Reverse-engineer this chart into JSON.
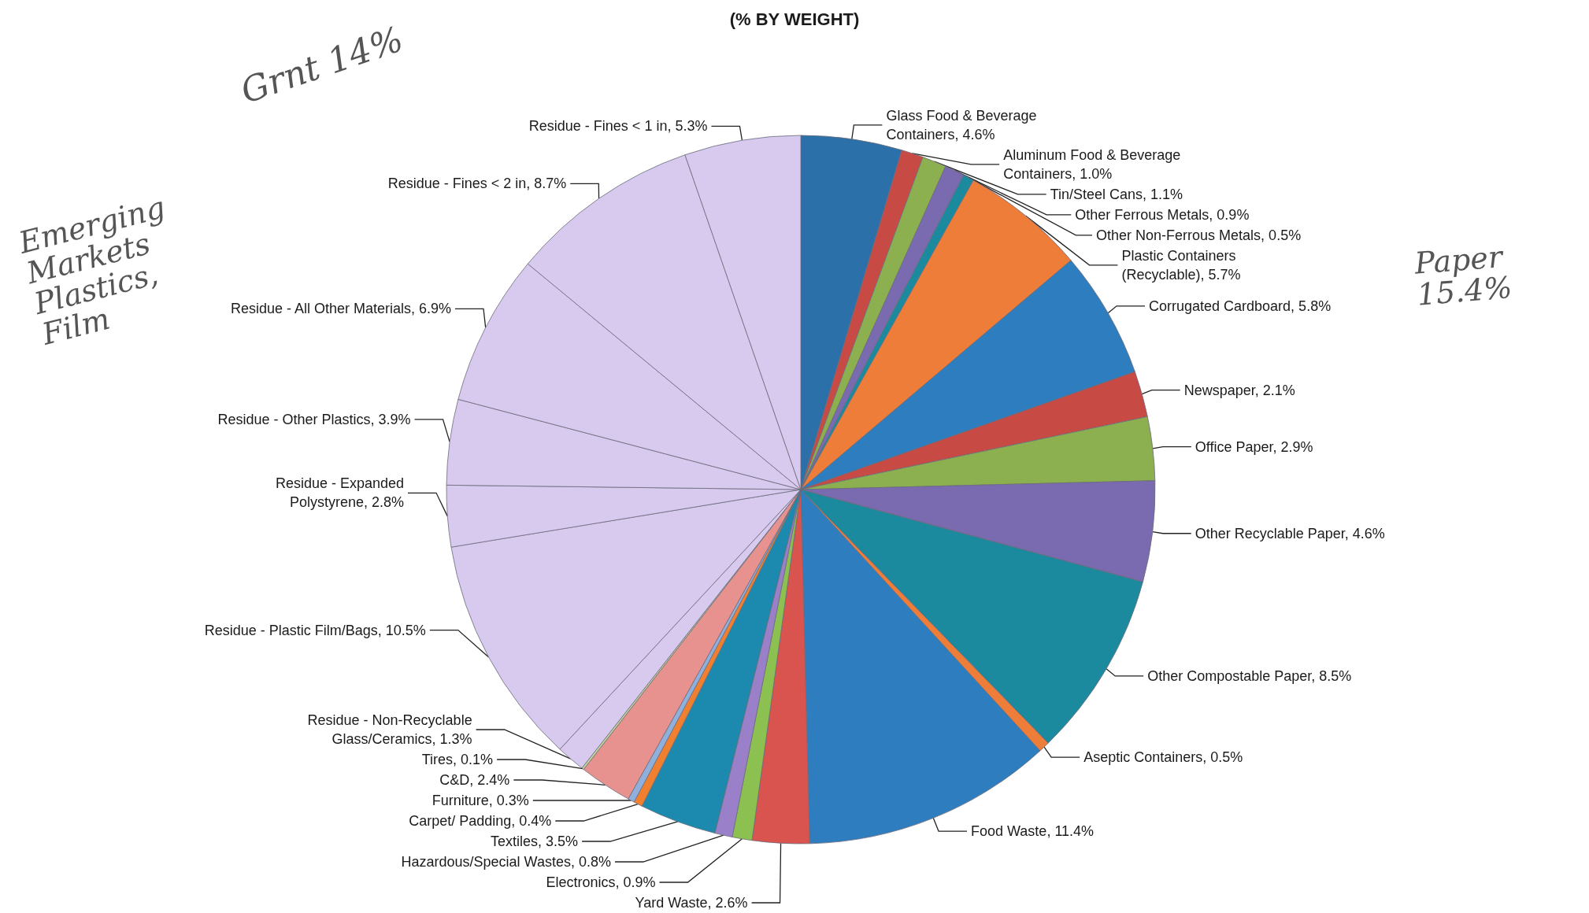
{
  "chart_data": {
    "type": "pie",
    "title": "(% BY WEIGHT)",
    "categories": [
      "Glass Food & Beverage Containers",
      "Aluminum Food & Beverage Containers",
      "Tin/Steel Cans",
      "Other Ferrous Metals",
      "Other Non-Ferrous Metals",
      "Plastic Containers (Recyclable)",
      "Corrugated Cardboard",
      "Newspaper",
      "Office Paper",
      "Other Recyclable Paper",
      "Other Compostable Paper",
      "Aseptic Containers",
      "Food Waste",
      "Yard Waste",
      "Electronics",
      "Hazardous/Special Wastes",
      "Textiles",
      "Carpet/ Padding",
      "Furniture",
      "C&D",
      "Tires",
      "Residue - Non-Recyclable Glass/Ceramics",
      "Residue - Plastic Film/Bags",
      "Residue - Expanded Polystyrene",
      "Residue - Other Plastics",
      "Residue - All Other Materials",
      "Residue - Fines < 2 in",
      "Residue - Fines < 1 in"
    ],
    "values": [
      4.6,
      1.0,
      1.1,
      0.9,
      0.5,
      5.7,
      5.8,
      2.1,
      2.9,
      4.6,
      8.5,
      0.5,
      11.4,
      2.6,
      0.9,
      0.8,
      3.5,
      0.4,
      0.3,
      2.4,
      0.1,
      1.3,
      10.5,
      2.8,
      3.9,
      6.9,
      8.7,
      5.3
    ],
    "value_labels": [
      "4.6%",
      "1.0%",
      "1.1%",
      "0.9%",
      "0.5%",
      "5.7%",
      "5.8%",
      "2.1%",
      "2.9%",
      "4.6%",
      "8.5%",
      "0.5%",
      "11.4%",
      "2.6%",
      "0.9%",
      "0.8%",
      "3.5%",
      "0.4%",
      "0.3%",
      "2.4%",
      "0.1%",
      "1.3%",
      "10.5%",
      "2.8%",
      "3.9%",
      "6.9%",
      "8.7%",
      "5.3%"
    ],
    "colors": [
      "#2b70a8",
      "#c84a45",
      "#8cb050",
      "#7a6ab0",
      "#1c8a9e",
      "#ee7d3a",
      "#2e7dbf",
      "#c84a45",
      "#8cb050",
      "#7a6ab0",
      "#1c8a9e",
      "#ee7d3a",
      "#2e7dbf",
      "#d9534f",
      "#8cc050",
      "#9a80c8",
      "#1c8aae",
      "#f08030",
      "#8fb0dd",
      "#e8928f",
      "#c3d69b",
      "#d8c9ef",
      "#d8c9ef",
      "#d8c9ef",
      "#d8c9ef",
      "#d8c9ef",
      "#d8c9ef",
      "#d8c9ef"
    ],
    "annotations": [
      "Grnt 14%",
      "Emerging Markets Plastics, Film",
      "Paper 15.4%"
    ],
    "legend": false
  }
}
